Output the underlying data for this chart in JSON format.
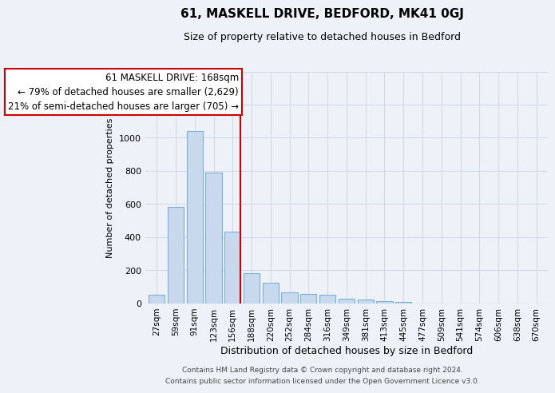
{
  "title": "61, MASKELL DRIVE, BEDFORD, MK41 0GJ",
  "subtitle": "Size of property relative to detached houses in Bedford",
  "xlabel": "Distribution of detached houses by size in Bedford",
  "ylabel": "Number of detached properties",
  "categories": [
    "27sqm",
    "59sqm",
    "91sqm",
    "123sqm",
    "156sqm",
    "188sqm",
    "220sqm",
    "252sqm",
    "284sqm",
    "316sqm",
    "349sqm",
    "381sqm",
    "413sqm",
    "445sqm",
    "477sqm",
    "509sqm",
    "541sqm",
    "574sqm",
    "606sqm",
    "638sqm",
    "670sqm"
  ],
  "values": [
    50,
    580,
    1040,
    790,
    430,
    180,
    125,
    65,
    55,
    50,
    25,
    20,
    12,
    5,
    0,
    0,
    0,
    0,
    0,
    0,
    0
  ],
  "bar_color": "#c8d9ee",
  "bar_edge_color": "#7ab0d4",
  "highlight_color": "#cc0000",
  "annotation_title": "61 MASKELL DRIVE: 168sqm",
  "annotation_line1": "← 79% of detached houses are smaller (2,629)",
  "annotation_line2": "21% of semi-detached houses are larger (705) →",
  "annotation_box_facecolor": "#ffffff",
  "annotation_box_edgecolor": "#cc0000",
  "vline_index": 4,
  "ylim": [
    0,
    1400
  ],
  "yticks": [
    0,
    200,
    400,
    600,
    800,
    1000,
    1200,
    1400
  ],
  "footer_line1": "Contains HM Land Registry data © Crown copyright and database right 2024.",
  "footer_line2": "Contains public sector information licensed under the Open Government Licence v3.0.",
  "bg_color": "#eef2f8",
  "grid_color": "#d0d8e8",
  "title_fontsize": 11,
  "subtitle_fontsize": 9,
  "ylabel_fontsize": 8,
  "xlabel_fontsize": 9
}
